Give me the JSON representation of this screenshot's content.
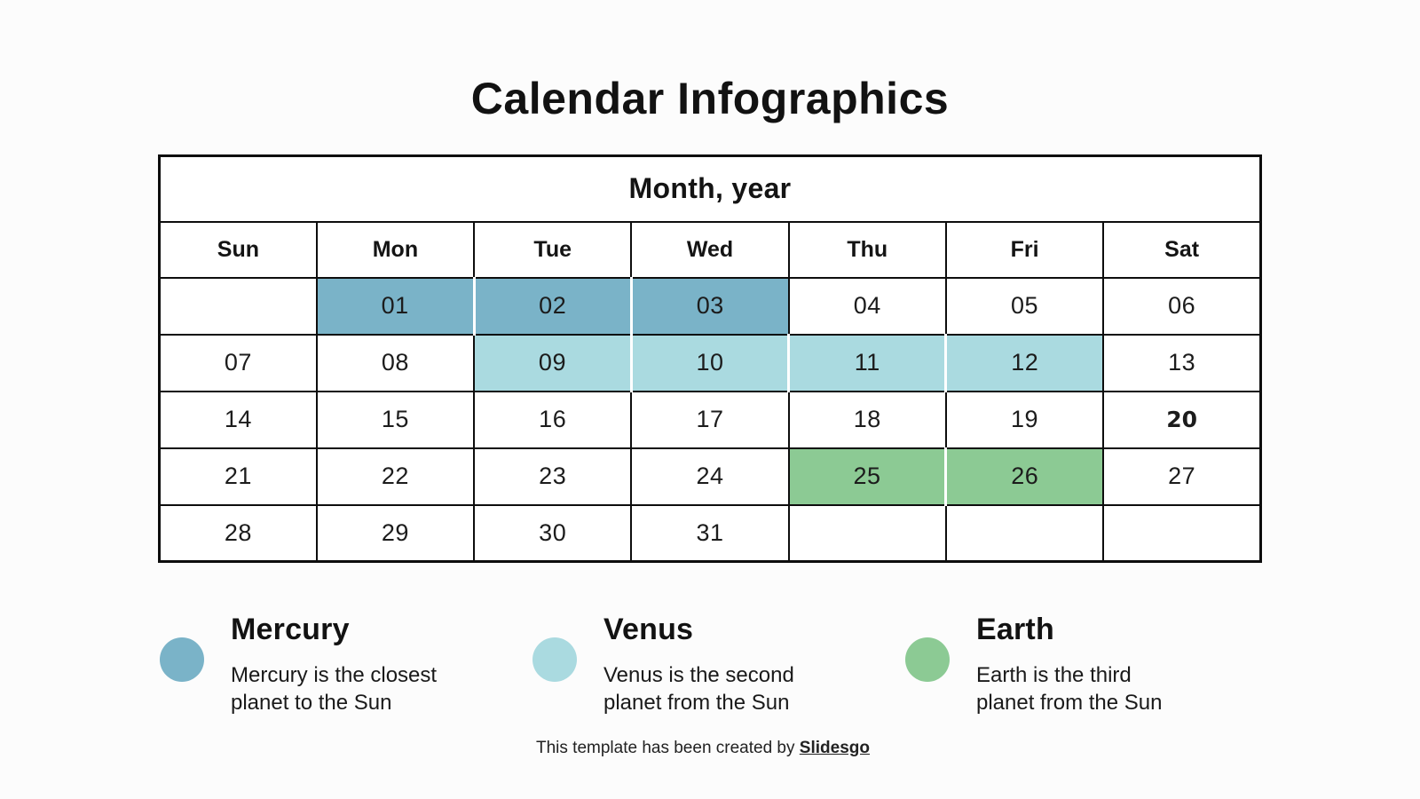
{
  "title": "Calendar Infographics",
  "calendar": {
    "month_label": "Month, year",
    "day_headers": [
      "Sun",
      "Mon",
      "Tue",
      "Wed",
      "Thu",
      "Fri",
      "Sat"
    ],
    "weeks": [
      [
        {
          "day": ""
        },
        {
          "day": "01",
          "highlight": "mercury"
        },
        {
          "day": "02",
          "highlight": "mercury"
        },
        {
          "day": "03",
          "highlight": "mercury"
        },
        {
          "day": "04"
        },
        {
          "day": "05"
        },
        {
          "day": "06"
        }
      ],
      [
        {
          "day": "07"
        },
        {
          "day": "08"
        },
        {
          "day": "09",
          "highlight": "venus"
        },
        {
          "day": "10",
          "highlight": "venus"
        },
        {
          "day": "11",
          "highlight": "venus"
        },
        {
          "day": "12",
          "highlight": "venus"
        },
        {
          "day": "13"
        }
      ],
      [
        {
          "day": "14"
        },
        {
          "day": "15"
        },
        {
          "day": "16"
        },
        {
          "day": "17"
        },
        {
          "day": "18"
        },
        {
          "day": "19"
        },
        {
          "day": "20",
          "bold": true
        }
      ],
      [
        {
          "day": "21"
        },
        {
          "day": "22"
        },
        {
          "day": "23"
        },
        {
          "day": "24"
        },
        {
          "day": "25",
          "highlight": "earth"
        },
        {
          "day": "26",
          "highlight": "earth"
        },
        {
          "day": "27"
        }
      ],
      [
        {
          "day": "28"
        },
        {
          "day": "29"
        },
        {
          "day": "30"
        },
        {
          "day": "31"
        },
        {
          "day": ""
        },
        {
          "day": ""
        },
        {
          "day": ""
        }
      ]
    ]
  },
  "colors": {
    "mercury": "#7ab3c8",
    "venus": "#aadae0",
    "earth": "#8cca94",
    "border": "#0d0d0d",
    "background": "#fcfcfc"
  },
  "legend": [
    {
      "id": "mercury",
      "title": "Mercury",
      "desc1": "Mercury is the closest",
      "desc2": "planet to the Sun"
    },
    {
      "id": "venus",
      "title": "Venus",
      "desc1": "Venus is the second",
      "desc2": "planet from the Sun"
    },
    {
      "id": "earth",
      "title": "Earth",
      "desc1": "Earth is the third",
      "desc2": "planet from the Sun"
    }
  ],
  "footer": {
    "text": "This template has been created by ",
    "brand": "Slidesgo"
  }
}
